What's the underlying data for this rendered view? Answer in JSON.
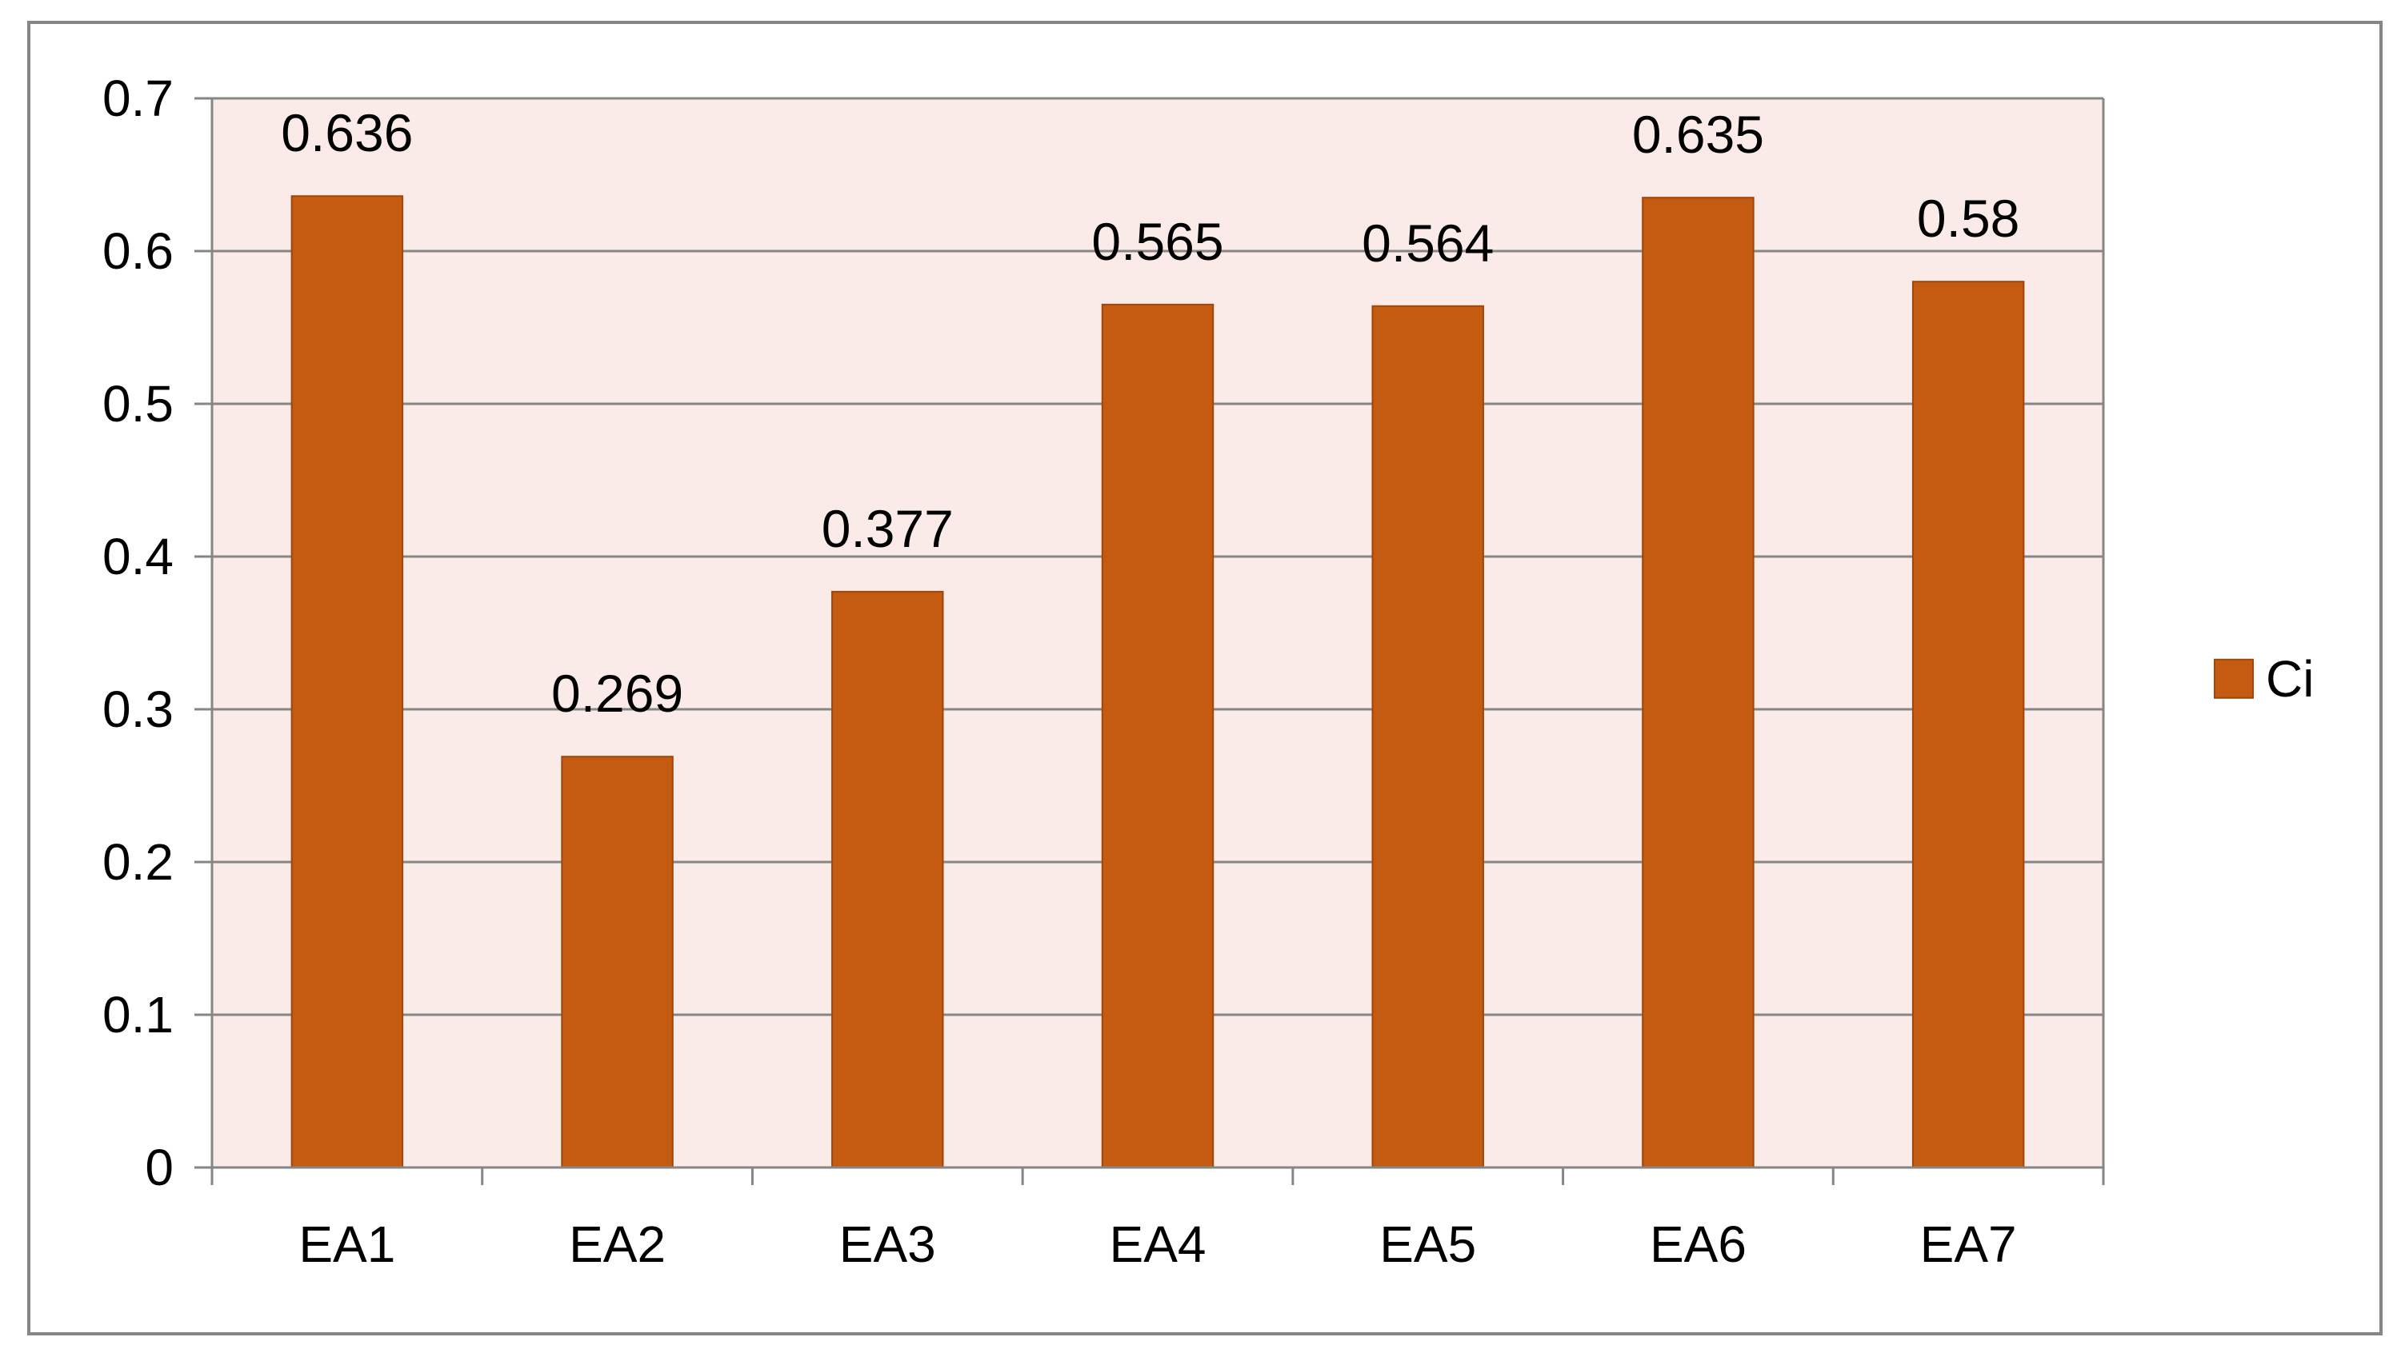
{
  "chart_data": {
    "type": "bar",
    "categories": [
      "EA1",
      "EA2",
      "EA3",
      "EA4",
      "EA5",
      "EA6",
      "EA7"
    ],
    "series": [
      {
        "name": "Ci",
        "values": [
          0.636,
          0.269,
          0.377,
          0.565,
          0.564,
          0.635,
          0.58
        ],
        "labels": [
          "0.636",
          "0.269",
          "0.377",
          "0.565",
          "0.564",
          "0.635",
          "0.58"
        ],
        "color": "#C55A11"
      }
    ],
    "title": "",
    "xlabel": "",
    "ylabel": "",
    "ylim": [
      0,
      0.7
    ],
    "yticks": [
      0,
      0.1,
      0.2,
      0.3,
      0.4,
      0.5,
      0.6,
      0.7
    ],
    "ytick_labels": [
      "0",
      "0.1",
      "0.2",
      "0.3",
      "0.4",
      "0.5",
      "0.6",
      "0.7"
    ],
    "grid": true,
    "legend": "right",
    "plot_background": "#FAEBE8",
    "gridline_color": "#868686",
    "border_color": "#868686"
  }
}
